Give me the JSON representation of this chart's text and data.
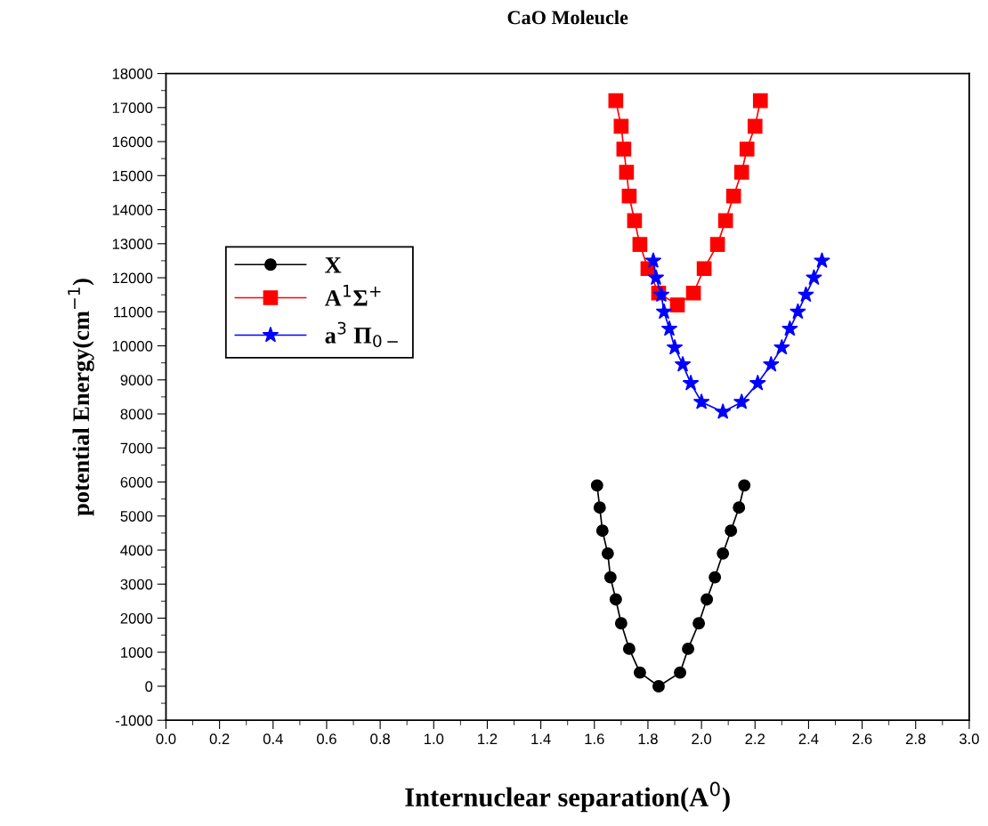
{
  "chart_data": {
    "type": "line",
    "title": "CaO Moleucle",
    "xlabel": "Internuclear separation(A$^{0}$)",
    "ylabel": "potential Energy(cm$^{−1}$)",
    "xlim": [
      0,
      3.0
    ],
    "ylim": [
      -1000,
      18000
    ],
    "xticks": [
      {
        "value": 0,
        "label": "0.0"
      },
      0.2,
      0.4,
      0.6,
      0.8,
      {
        "value": 1,
        "label": "1.0"
      },
      1.2,
      1.4,
      1.6,
      1.8,
      {
        "value": 2,
        "label": "2.0"
      },
      2.2,
      2.4,
      2.6,
      2.8,
      {
        "value": 3,
        "label": "3.0"
      }
    ],
    "yticks": [
      -1000,
      0,
      1000,
      2000,
      3000,
      4000,
      5000,
      6000,
      7000,
      8000,
      9000,
      10000,
      11000,
      12000,
      13000,
      14000,
      15000,
      16000,
      17000,
      18000
    ],
    "legend": "top left",
    "grid": false,
    "line_style": "solid",
    "series": [
      {
        "name": "X",
        "color": "#000000",
        "marker": "circle",
        "x": [
          1.61,
          1.62,
          1.63,
          1.65,
          1.66,
          1.68,
          1.7,
          1.73,
          1.77,
          1.84,
          1.92,
          1.95,
          1.99,
          2.02,
          2.05,
          2.08,
          2.11,
          2.14,
          2.16
        ],
        "values": [
          5900,
          5250,
          4570,
          3900,
          3200,
          2550,
          1850,
          1100,
          400,
          0,
          400,
          1100,
          1850,
          2550,
          3200,
          3900,
          4570,
          5250,
          5900
        ]
      },
      {
        "name": "A$^{1}$Σ$^{+}$",
        "color": "#ff0000",
        "marker": "square",
        "x": [
          1.68,
          1.7,
          1.71,
          1.72,
          1.73,
          1.75,
          1.77,
          1.8,
          1.84,
          1.91,
          1.97,
          2.01,
          2.06,
          2.09,
          2.12,
          2.15,
          2.17,
          2.2,
          2.22
        ],
        "values": [
          17200,
          16450,
          15780,
          15100,
          14400,
          13680,
          12980,
          12270,
          11550,
          11200,
          11550,
          12270,
          12980,
          13680,
          14400,
          15100,
          15780,
          16450,
          17200
        ]
      },
      {
        "name": "a$^{3}$ Π$_{0−}$",
        "color": "#0000ff",
        "marker": "star",
        "x": [
          1.82,
          1.83,
          1.85,
          1.86,
          1.88,
          1.9,
          1.93,
          1.96,
          2.0,
          2.08,
          2.15,
          2.21,
          2.26,
          2.3,
          2.33,
          2.36,
          2.39,
          2.42,
          2.45
        ],
        "values": [
          12500,
          12000,
          11500,
          11000,
          10500,
          9950,
          9450,
          8900,
          8350,
          8060,
          8350,
          8900,
          9450,
          9950,
          10500,
          11000,
          11500,
          12000,
          12500
        ]
      }
    ]
  }
}
